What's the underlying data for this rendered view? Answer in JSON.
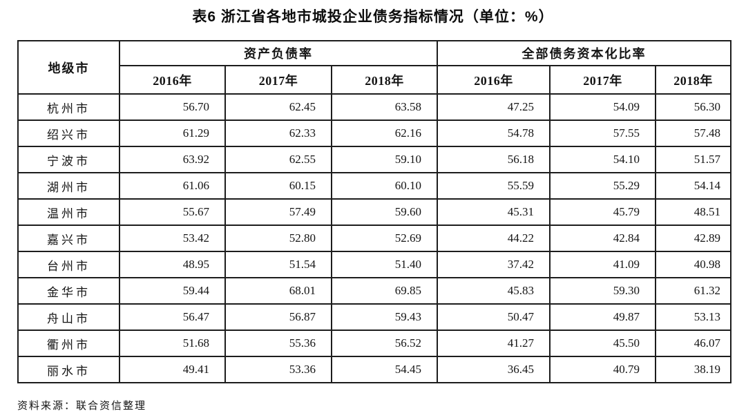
{
  "page": {
    "title": "表6  浙江省各地市城投企业债务指标情况（单位：%）",
    "source_note": "资料来源：联合资信整理"
  },
  "table": {
    "corner_header": "地级市",
    "group_headers": [
      "资产负债率",
      "全部债务资本化比率"
    ],
    "year_headers": [
      "2016年",
      "2017年",
      "2018年",
      "2016年",
      "2017年",
      "2018年"
    ],
    "rows": [
      {
        "city": "杭州市",
        "values": [
          "56.70",
          "62.45",
          "63.58",
          "47.25",
          "54.09",
          "56.30"
        ]
      },
      {
        "city": "绍兴市",
        "values": [
          "61.29",
          "62.33",
          "62.16",
          "54.78",
          "57.55",
          "57.48"
        ]
      },
      {
        "city": "宁波市",
        "values": [
          "63.92",
          "62.55",
          "59.10",
          "56.18",
          "54.10",
          "51.57"
        ]
      },
      {
        "city": "湖州市",
        "values": [
          "61.06",
          "60.15",
          "60.10",
          "55.59",
          "55.29",
          "54.14"
        ]
      },
      {
        "city": "温州市",
        "values": [
          "55.67",
          "57.49",
          "59.60",
          "45.31",
          "45.79",
          "48.51"
        ]
      },
      {
        "city": "嘉兴市",
        "values": [
          "53.42",
          "52.80",
          "52.69",
          "44.22",
          "42.84",
          "42.89"
        ]
      },
      {
        "city": "台州市",
        "values": [
          "48.95",
          "51.54",
          "51.40",
          "37.42",
          "41.09",
          "40.98"
        ]
      },
      {
        "city": "金华市",
        "values": [
          "59.44",
          "68.01",
          "69.85",
          "45.83",
          "59.30",
          "61.32"
        ]
      },
      {
        "city": "舟山市",
        "values": [
          "56.47",
          "56.87",
          "59.43",
          "50.47",
          "49.87",
          "53.13"
        ]
      },
      {
        "city": "衢州市",
        "values": [
          "51.68",
          "55.36",
          "56.52",
          "41.27",
          "45.50",
          "46.07"
        ]
      },
      {
        "city": "丽水市",
        "values": [
          "49.41",
          "53.36",
          "54.45",
          "36.45",
          "40.79",
          "38.19"
        ]
      }
    ]
  }
}
